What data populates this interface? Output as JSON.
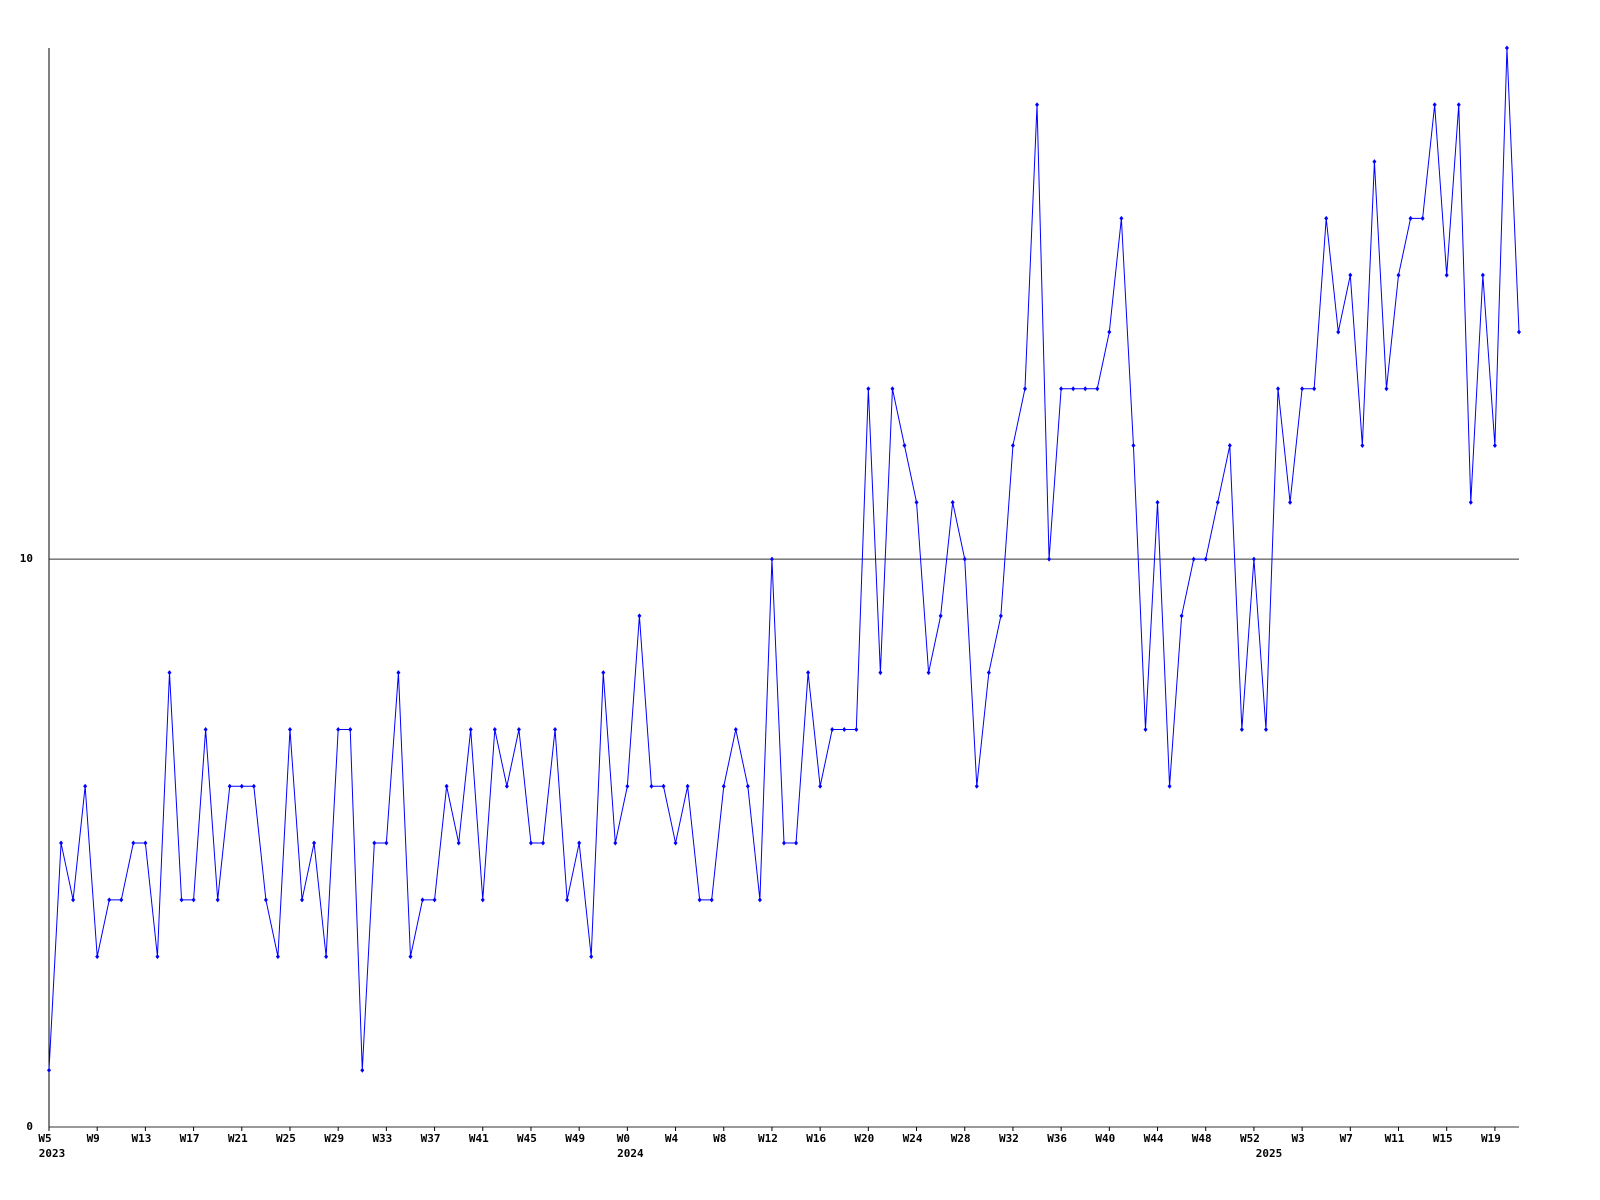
{
  "chart_data": {
    "type": "line",
    "color": "#0000ff",
    "ylim": [
      0,
      19
    ],
    "yticks": [
      0,
      10
    ],
    "grid": true,
    "categories": [
      "W5",
      null,
      null,
      null,
      "W9",
      null,
      null,
      null,
      "W13",
      null,
      null,
      null,
      "W17",
      null,
      null,
      null,
      "W21",
      null,
      null,
      null,
      "W25",
      null,
      null,
      null,
      "W29",
      null,
      null,
      null,
      "W33",
      null,
      null,
      null,
      "W37",
      null,
      null,
      null,
      "W41",
      null,
      null,
      null,
      "W45",
      null,
      null,
      null,
      "W49",
      null,
      null,
      null,
      "W0",
      null,
      null,
      null,
      "W4",
      null,
      null,
      null,
      "W8",
      null,
      null,
      null,
      "W12",
      null,
      null,
      null,
      "W16",
      null,
      null,
      null,
      "W20",
      null,
      null,
      null,
      "W24",
      null,
      null,
      null,
      "W28",
      null,
      null,
      null,
      "W32",
      null,
      null,
      null,
      "W36",
      null,
      null,
      null,
      "W40",
      null,
      null,
      null,
      "W44",
      null,
      null,
      null,
      "W48",
      null,
      null,
      null,
      "W52",
      null,
      null,
      null,
      "W3",
      null,
      null,
      null,
      "W7",
      null,
      null,
      null,
      "W11",
      null,
      null,
      null,
      "W15",
      null,
      null,
      null,
      "W19",
      null,
      null
    ],
    "category_years": [
      "2023",
      null,
      null,
      null,
      null,
      null,
      null,
      null,
      null,
      null,
      null,
      null,
      null,
      null,
      null,
      null,
      null,
      null,
      null,
      null,
      null,
      null,
      null,
      null,
      null,
      null,
      null,
      null,
      null,
      null,
      null,
      null,
      null,
      null,
      null,
      null,
      null,
      null,
      null,
      null,
      null,
      null,
      null,
      null,
      null,
      null,
      null,
      null,
      "2024",
      null,
      null,
      null,
      null,
      null,
      null,
      null,
      null,
      null,
      null,
      null,
      null,
      null,
      null,
      null,
      null,
      null,
      null,
      null,
      null,
      null,
      null,
      null,
      null,
      null,
      null,
      null,
      null,
      null,
      null,
      null,
      null,
      null,
      null,
      null,
      null,
      null,
      null,
      null,
      null,
      null,
      null,
      null,
      null,
      null,
      null,
      null,
      null,
      null,
      null,
      null,
      null,
      "2025",
      null,
      null,
      null,
      null,
      null,
      null,
      null,
      null,
      null,
      null,
      null,
      null,
      null,
      null,
      null,
      null,
      null,
      null,
      null,
      null,
      null
    ],
    "values": [
      1,
      5,
      4,
      6,
      3,
      4,
      4,
      5,
      5,
      3,
      8,
      4,
      4,
      7,
      4,
      6,
      6,
      6,
      4,
      3,
      7,
      4,
      5,
      3,
      7,
      7,
      1,
      5,
      5,
      8,
      3,
      4,
      4,
      6,
      5,
      7,
      4,
      7,
      6,
      7,
      5,
      5,
      7,
      4,
      5,
      3,
      8,
      5,
      6,
      9,
      6,
      6,
      5,
      6,
      4,
      4,
      6,
      7,
      6,
      4,
      10,
      5,
      5,
      8,
      6,
      7,
      7,
      7,
      13,
      8,
      13,
      12,
      11,
      8,
      9,
      11,
      10,
      6,
      8,
      9,
      12,
      13,
      18,
      10,
      13,
      13,
      13,
      13,
      14,
      16,
      12,
      7,
      11,
      6,
      9,
      10,
      10,
      11,
      12,
      7,
      10,
      7,
      13,
      11,
      13,
      13,
      16,
      14,
      15,
      12,
      17,
      13,
      15,
      16,
      16,
      18,
      15,
      18,
      11,
      15,
      12,
      19,
      14
    ]
  }
}
